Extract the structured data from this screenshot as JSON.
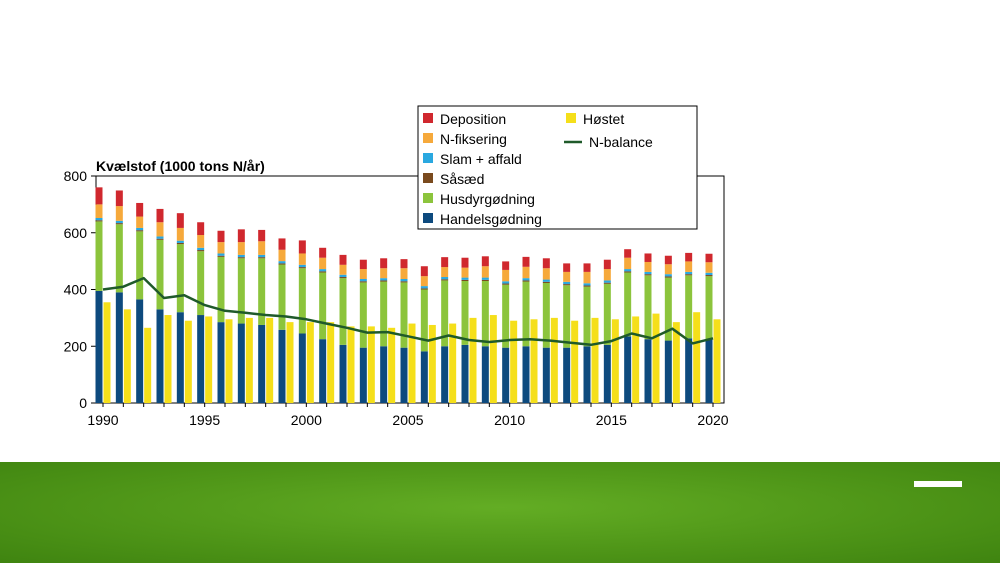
{
  "footer": {
    "band_color": "#4f9618"
  },
  "chart_data": {
    "type": "bar",
    "title": "Kvælstof (1000 tons N/år)",
    "xlabel": "",
    "ylabel": "",
    "ylim": [
      0,
      800
    ],
    "yticks": [
      0,
      200,
      400,
      600,
      800
    ],
    "xtick_labels": [
      "1990",
      "1995",
      "2000",
      "2005",
      "2010",
      "2015",
      "2020"
    ],
    "grid": false,
    "legend_position": "top-right",
    "x": [
      1990,
      1991,
      1992,
      1993,
      1994,
      1995,
      1996,
      1997,
      1998,
      1999,
      2000,
      2001,
      2002,
      2003,
      2004,
      2005,
      2006,
      2007,
      2008,
      2009,
      2010,
      2011,
      2012,
      2013,
      2014,
      2015,
      2016,
      2017,
      2018,
      2019,
      2020
    ],
    "stacked_series": [
      {
        "name": "Handelsgødning",
        "color": "#0d4a7e",
        "values": [
          395,
          390,
          365,
          330,
          320,
          310,
          285,
          280,
          275,
          258,
          245,
          225,
          205,
          195,
          200,
          195,
          182,
          200,
          205,
          200,
          195,
          200,
          195,
          195,
          200,
          205,
          235,
          225,
          220,
          228,
          225
        ]
      },
      {
        "name": "Husdyrgødning",
        "color": "#8cc43c",
        "values": [
          245,
          240,
          240,
          245,
          240,
          225,
          230,
          230,
          235,
          230,
          230,
          235,
          235,
          230,
          228,
          230,
          218,
          232,
          225,
          230,
          222,
          228,
          228,
          220,
          210,
          215,
          225,
          225,
          222,
          222,
          222
        ]
      },
      {
        "name": "Såsæd",
        "color": "#7a4a1e",
        "values": [
          4,
          4,
          4,
          4,
          4,
          4,
          4,
          4,
          4,
          4,
          4,
          4,
          4,
          4,
          4,
          4,
          4,
          4,
          4,
          4,
          4,
          4,
          4,
          4,
          4,
          4,
          4,
          4,
          4,
          4,
          4
        ]
      },
      {
        "name": "Slam + affald",
        "color": "#2aa8e0",
        "values": [
          8,
          8,
          8,
          8,
          8,
          8,
          8,
          8,
          8,
          8,
          8,
          8,
          8,
          8,
          8,
          8,
          8,
          8,
          8,
          8,
          8,
          8,
          8,
          8,
          8,
          8,
          8,
          8,
          8,
          8,
          8
        ]
      },
      {
        "name": "N-fiksering",
        "color": "#f6a93b",
        "values": [
          48,
          52,
          40,
          50,
          45,
          45,
          40,
          45,
          48,
          40,
          40,
          40,
          35,
          35,
          35,
          38,
          35,
          35,
          35,
          40,
          40,
          40,
          40,
          35,
          40,
          40,
          40,
          35,
          35,
          37,
          37
        ]
      },
      {
        "name": "Deposition",
        "color": "#d0282e",
        "values": [
          60,
          55,
          48,
          47,
          52,
          45,
          40,
          45,
          40,
          40,
          46,
          35,
          35,
          33,
          35,
          32,
          35,
          35,
          35,
          35,
          30,
          35,
          35,
          30,
          30,
          33,
          30,
          30,
          30,
          30,
          30
        ]
      }
    ],
    "harvest_series": {
      "name": "Høstet",
      "color": "#f5df1a",
      "values": [
        355,
        330,
        265,
        310,
        290,
        305,
        295,
        300,
        300,
        285,
        285,
        285,
        270,
        270,
        265,
        280,
        275,
        280,
        300,
        310,
        290,
        295,
        300,
        290,
        300,
        295,
        305,
        315,
        285,
        320,
        295
      ]
    },
    "line_series": {
      "name": "N-balance",
      "color": "#1f5a2a",
      "values": [
        400,
        410,
        440,
        370,
        380,
        345,
        325,
        318,
        310,
        305,
        295,
        280,
        265,
        248,
        250,
        235,
        220,
        238,
        222,
        215,
        222,
        225,
        220,
        212,
        205,
        218,
        245,
        228,
        262,
        210,
        228
      ]
    },
    "legend": [
      {
        "label": "Deposition",
        "color": "#d0282e",
        "kind": "box"
      },
      {
        "label": "N-fiksering",
        "color": "#f6a93b",
        "kind": "box"
      },
      {
        "label": "Slam + affald",
        "color": "#2aa8e0",
        "kind": "box"
      },
      {
        "label": "Såsæd",
        "color": "#7a4a1e",
        "kind": "box"
      },
      {
        "label": "Husdyrgødning",
        "color": "#8cc43c",
        "kind": "box"
      },
      {
        "label": "Handelsgødning",
        "color": "#0d4a7e",
        "kind": "box"
      },
      {
        "label": "Høstet",
        "color": "#f5df1a",
        "kind": "box"
      },
      {
        "label": "N-balance",
        "color": "#1f5a2a",
        "kind": "line"
      }
    ]
  }
}
